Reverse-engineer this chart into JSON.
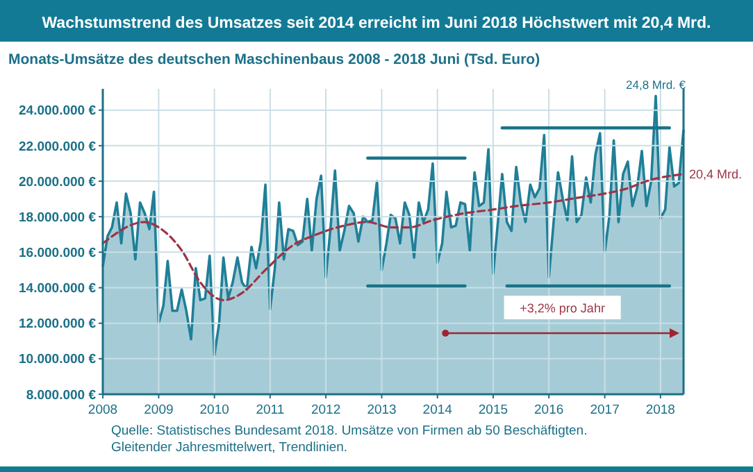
{
  "chart_data": {
    "type": "area",
    "title": "Wachstumstrend des Umsatzes seit 2014 erreicht im Juni 2018 Höchstwert mit 20,4 Mrd.",
    "subtitle": "Monats-Umsätze des deutschen Maschinenbaus 2008 - 2018 Juni (Tsd. Euro)",
    "x": [
      "2008-01",
      "2008-02",
      "2008-03",
      "2008-04",
      "2008-05",
      "2008-06",
      "2008-07",
      "2008-08",
      "2008-09",
      "2008-10",
      "2008-11",
      "2008-12",
      "2009-01",
      "2009-02",
      "2009-03",
      "2009-04",
      "2009-05",
      "2009-06",
      "2009-07",
      "2009-08",
      "2009-09",
      "2009-10",
      "2009-11",
      "2009-12",
      "2010-01",
      "2010-02",
      "2010-03",
      "2010-04",
      "2010-05",
      "2010-06",
      "2010-07",
      "2010-08",
      "2010-09",
      "2010-10",
      "2010-11",
      "2010-12",
      "2011-01",
      "2011-02",
      "2011-03",
      "2011-04",
      "2011-05",
      "2011-06",
      "2011-07",
      "2011-08",
      "2011-09",
      "2011-10",
      "2011-11",
      "2011-12",
      "2012-01",
      "2012-02",
      "2012-03",
      "2012-04",
      "2012-05",
      "2012-06",
      "2012-07",
      "2012-08",
      "2012-09",
      "2012-10",
      "2012-11",
      "2012-12",
      "2013-01",
      "2013-02",
      "2013-03",
      "2013-04",
      "2013-05",
      "2013-06",
      "2013-07",
      "2013-08",
      "2013-09",
      "2013-10",
      "2013-11",
      "2013-12",
      "2014-01",
      "2014-02",
      "2014-03",
      "2014-04",
      "2014-05",
      "2014-06",
      "2014-07",
      "2014-08",
      "2014-09",
      "2014-10",
      "2014-11",
      "2014-12",
      "2015-01",
      "2015-02",
      "2015-03",
      "2015-04",
      "2015-05",
      "2015-06",
      "2015-07",
      "2015-08",
      "2015-09",
      "2015-10",
      "2015-11",
      "2015-12",
      "2016-01",
      "2016-02",
      "2016-03",
      "2016-04",
      "2016-05",
      "2016-06",
      "2016-07",
      "2016-08",
      "2016-09",
      "2016-10",
      "2016-11",
      "2016-12",
      "2017-01",
      "2017-02",
      "2017-03",
      "2017-04",
      "2017-05",
      "2017-06",
      "2017-07",
      "2017-08",
      "2017-09",
      "2017-10",
      "2017-11",
      "2017-12",
      "2018-01",
      "2018-02",
      "2018-03",
      "2018-04",
      "2018-05",
      "2018-06"
    ],
    "series": [
      {
        "color": "#1f7f98",
        "values": [
          15200000,
          16900000,
          17400000,
          18800000,
          16500000,
          19300000,
          18200000,
          15600000,
          18800000,
          18200000,
          17300000,
          19400000,
          12000000,
          13000000,
          15500000,
          12700000,
          12700000,
          13900000,
          12700000,
          11100000,
          15100000,
          13300000,
          13400000,
          15800000,
          10200000,
          12000000,
          15700000,
          13400000,
          14300000,
          15700000,
          14300000,
          13900000,
          16300000,
          15100000,
          16600000,
          19800000,
          12800000,
          15100000,
          18800000,
          15600000,
          17300000,
          17200000,
          16400000,
          16600000,
          19000000,
          16100000,
          19000000,
          20300000,
          14600000,
          17400000,
          20600000,
          16100000,
          17200000,
          18600000,
          18200000,
          16600000,
          18000000,
          17700000,
          17800000,
          20000000,
          15000000,
          16500000,
          18100000,
          17900000,
          16500000,
          18800000,
          18100000,
          15700000,
          18800000,
          17700000,
          18400000,
          21000000,
          15400000,
          16500000,
          19400000,
          17400000,
          17500000,
          18800000,
          18700000,
          16100000,
          20500000,
          18600000,
          18800000,
          21800000,
          14800000,
          17700000,
          20400000,
          17700000,
          17200000,
          20800000,
          18800000,
          17700000,
          19800000,
          19100000,
          19600000,
          22600000,
          14600000,
          17700000,
          20500000,
          19000000,
          17800000,
          21400000,
          17700000,
          18100000,
          20200000,
          18800000,
          21500000,
          22700000,
          16000000,
          18100000,
          22300000,
          17700000,
          20400000,
          21100000,
          18600000,
          19600000,
          21700000,
          18600000,
          20000000,
          24800000,
          17900000,
          18400000,
          21900000,
          19700000,
          19900000,
          22900000
        ]
      },
      {
        "type": "line",
        "color": "#9e3346",
        "line_style": "dashed",
        "x": [
          "2008-01",
          "2008-10",
          "2009-01",
          "2009-06",
          "2009-10",
          "2010-03",
          "2010-07",
          "2010-12",
          "2011-06",
          "2011-11",
          "2012-05",
          "2012-10",
          "2013-03",
          "2013-07",
          "2013-12",
          "2014-07",
          "2015-01",
          "2015-06",
          "2016-01",
          "2016-08",
          "2017-01",
          "2017-06",
          "2017-10",
          "2018-06"
        ],
        "values": [
          16500000,
          17700000,
          17400000,
          16100000,
          14300000,
          13300000,
          13700000,
          15000000,
          16400000,
          17000000,
          17500000,
          17700000,
          17400000,
          17400000,
          17800000,
          18200000,
          18400000,
          18600000,
          18800000,
          19100000,
          19300000,
          19600000,
          20000000,
          20400000
        ]
      },
      {
        "type": "line",
        "color": "#1a7389",
        "x": [
          "2012-10",
          "2014-07"
        ],
        "values": [
          21300000,
          21300000
        ]
      },
      {
        "type": "line",
        "color": "#1a7389",
        "x": [
          "2012-10",
          "2014-07"
        ],
        "values": [
          14100000,
          14100000
        ]
      },
      {
        "type": "line",
        "color": "#1a7389",
        "x": [
          "2015-03",
          "2018-03"
        ],
        "values": [
          23000000,
          23000000
        ]
      },
      {
        "type": "line",
        "color": "#1a7389",
        "x": [
          "2015-04",
          "2018-03"
        ],
        "values": [
          14100000,
          14100000
        ]
      }
    ],
    "xlim": [
      "2008-01",
      "2018-06"
    ],
    "xticks": [
      {
        "value": "2008-01",
        "label": "2008"
      },
      {
        "value": "2009-01",
        "label": "2009"
      },
      {
        "value": "2010-01",
        "label": "2010"
      },
      {
        "value": "2011-01",
        "label": "2011"
      },
      {
        "value": "2012-01",
        "label": "2012"
      },
      {
        "value": "2013-01",
        "label": "2013"
      },
      {
        "value": "2014-01",
        "label": "2014"
      },
      {
        "value": "2015-01",
        "label": "2015"
      },
      {
        "value": "2016-01",
        "label": "2016"
      },
      {
        "value": "2017-01",
        "label": "2017"
      },
      {
        "value": "2018-01",
        "label": "2018"
      }
    ],
    "ylim": [
      8000000,
      25200000
    ],
    "yticks": [
      {
        "value": 8000000,
        "label": "8.000.000 €"
      },
      {
        "value": 10000000,
        "label": "10.000.000 €"
      },
      {
        "value": 12000000,
        "label": "12.000.000 €"
      },
      {
        "value": 14000000,
        "label": "14.000.000 €"
      },
      {
        "value": 16000000,
        "label": "16.000.000 €"
      },
      {
        "value": 18000000,
        "label": "18.000.000 €"
      },
      {
        "value": 20000000,
        "label": "20.000.000 €"
      },
      {
        "value": 22000000,
        "label": "22.000.000 €"
      },
      {
        "value": 24000000,
        "label": "24.000.000 €"
      }
    ],
    "grid": true,
    "annotations": [
      {
        "text": "24,8 Mrd. €",
        "x": "2017-12",
        "y": 24800000
      },
      {
        "text": "20,4 Mrd.",
        "x": "2018-06",
        "y": 20400000
      },
      "+3,2% pro Jahr",
      "Quelle: Statistisches Bundesamt 2018. Umsätze von Firmen ab 50 Beschäftigten. Gleitender Jahresmittelwert, Trendlinien."
    ]
  }
}
